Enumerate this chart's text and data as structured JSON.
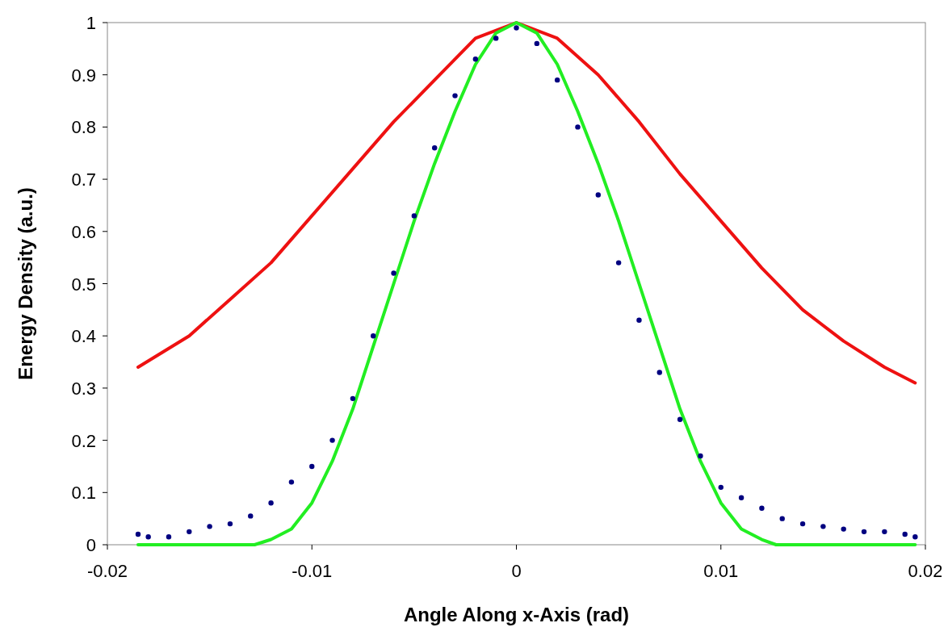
{
  "chart_data": {
    "type": "line",
    "xlabel": "Angle Along x-Axis (rad)",
    "ylabel": "Energy Density (a.u.)",
    "xlim": [
      -0.02,
      0.02
    ],
    "xticks": [
      -0.02,
      -0.01,
      0,
      0.01,
      0.02
    ],
    "ylim": [
      0,
      1
    ],
    "yticks": [
      0,
      0.1,
      0.2,
      0.3,
      0.4,
      0.5,
      0.6,
      0.7,
      0.8,
      0.9,
      1
    ],
    "grid": false,
    "series": [
      {
        "color": "#ee1111",
        "marker": "none",
        "line_style": "solid",
        "x": [
          -0.0185,
          -0.016,
          -0.014,
          -0.012,
          -0.01,
          -0.008,
          -0.006,
          -0.004,
          -0.002,
          0,
          0.002,
          0.004,
          0.006,
          0.008,
          0.01,
          0.012,
          0.014,
          0.016,
          0.018,
          0.0195
        ],
        "values": [
          0.34,
          0.4,
          0.47,
          0.54,
          0.63,
          0.72,
          0.81,
          0.89,
          0.97,
          1,
          0.97,
          0.9,
          0.81,
          0.71,
          0.62,
          0.53,
          0.45,
          0.39,
          0.34,
          0.31
        ]
      },
      {
        "color": "#22ee22",
        "marker": "none",
        "line_style": "solid",
        "x": [
          -0.0185,
          -0.0128,
          -0.012,
          -0.011,
          -0.01,
          -0.009,
          -0.008,
          -0.007,
          -0.006,
          -0.005,
          -0.004,
          -0.003,
          -0.002,
          -0.001,
          0,
          0.001,
          0.002,
          0.003,
          0.004,
          0.005,
          0.006,
          0.007,
          0.008,
          0.009,
          0.01,
          0.011,
          0.012,
          0.0127,
          0.0195
        ],
        "values": [
          0,
          0,
          0.01,
          0.03,
          0.08,
          0.16,
          0.26,
          0.38,
          0.5,
          0.62,
          0.73,
          0.83,
          0.92,
          0.98,
          1,
          0.98,
          0.92,
          0.83,
          0.73,
          0.62,
          0.5,
          0.38,
          0.26,
          0.16,
          0.08,
          0.03,
          0.01,
          0,
          0
        ]
      },
      {
        "type": "scatter",
        "color": "#000080",
        "marker": "circle",
        "x": [
          -0.0185,
          -0.018,
          -0.017,
          -0.016,
          -0.015,
          -0.014,
          -0.013,
          -0.012,
          -0.011,
          -0.01,
          -0.009,
          -0.008,
          -0.007,
          -0.006,
          -0.005,
          -0.004,
          -0.003,
          -0.002,
          -0.001,
          0,
          0.001,
          0.002,
          0.003,
          0.004,
          0.005,
          0.006,
          0.007,
          0.008,
          0.009,
          0.01,
          0.011,
          0.012,
          0.013,
          0.014,
          0.015,
          0.016,
          0.017,
          0.018,
          0.019,
          0.0195
        ],
        "values": [
          0.02,
          0.015,
          0.015,
          0.025,
          0.035,
          0.04,
          0.055,
          0.08,
          0.12,
          0.15,
          0.2,
          0.28,
          0.4,
          0.52,
          0.63,
          0.76,
          0.86,
          0.93,
          0.97,
          0.99,
          0.96,
          0.89,
          0.8,
          0.67,
          0.54,
          0.43,
          0.33,
          0.24,
          0.17,
          0.11,
          0.09,
          0.07,
          0.05,
          0.04,
          0.035,
          0.03,
          0.025,
          0.025,
          0.02,
          0.015
        ]
      }
    ]
  }
}
